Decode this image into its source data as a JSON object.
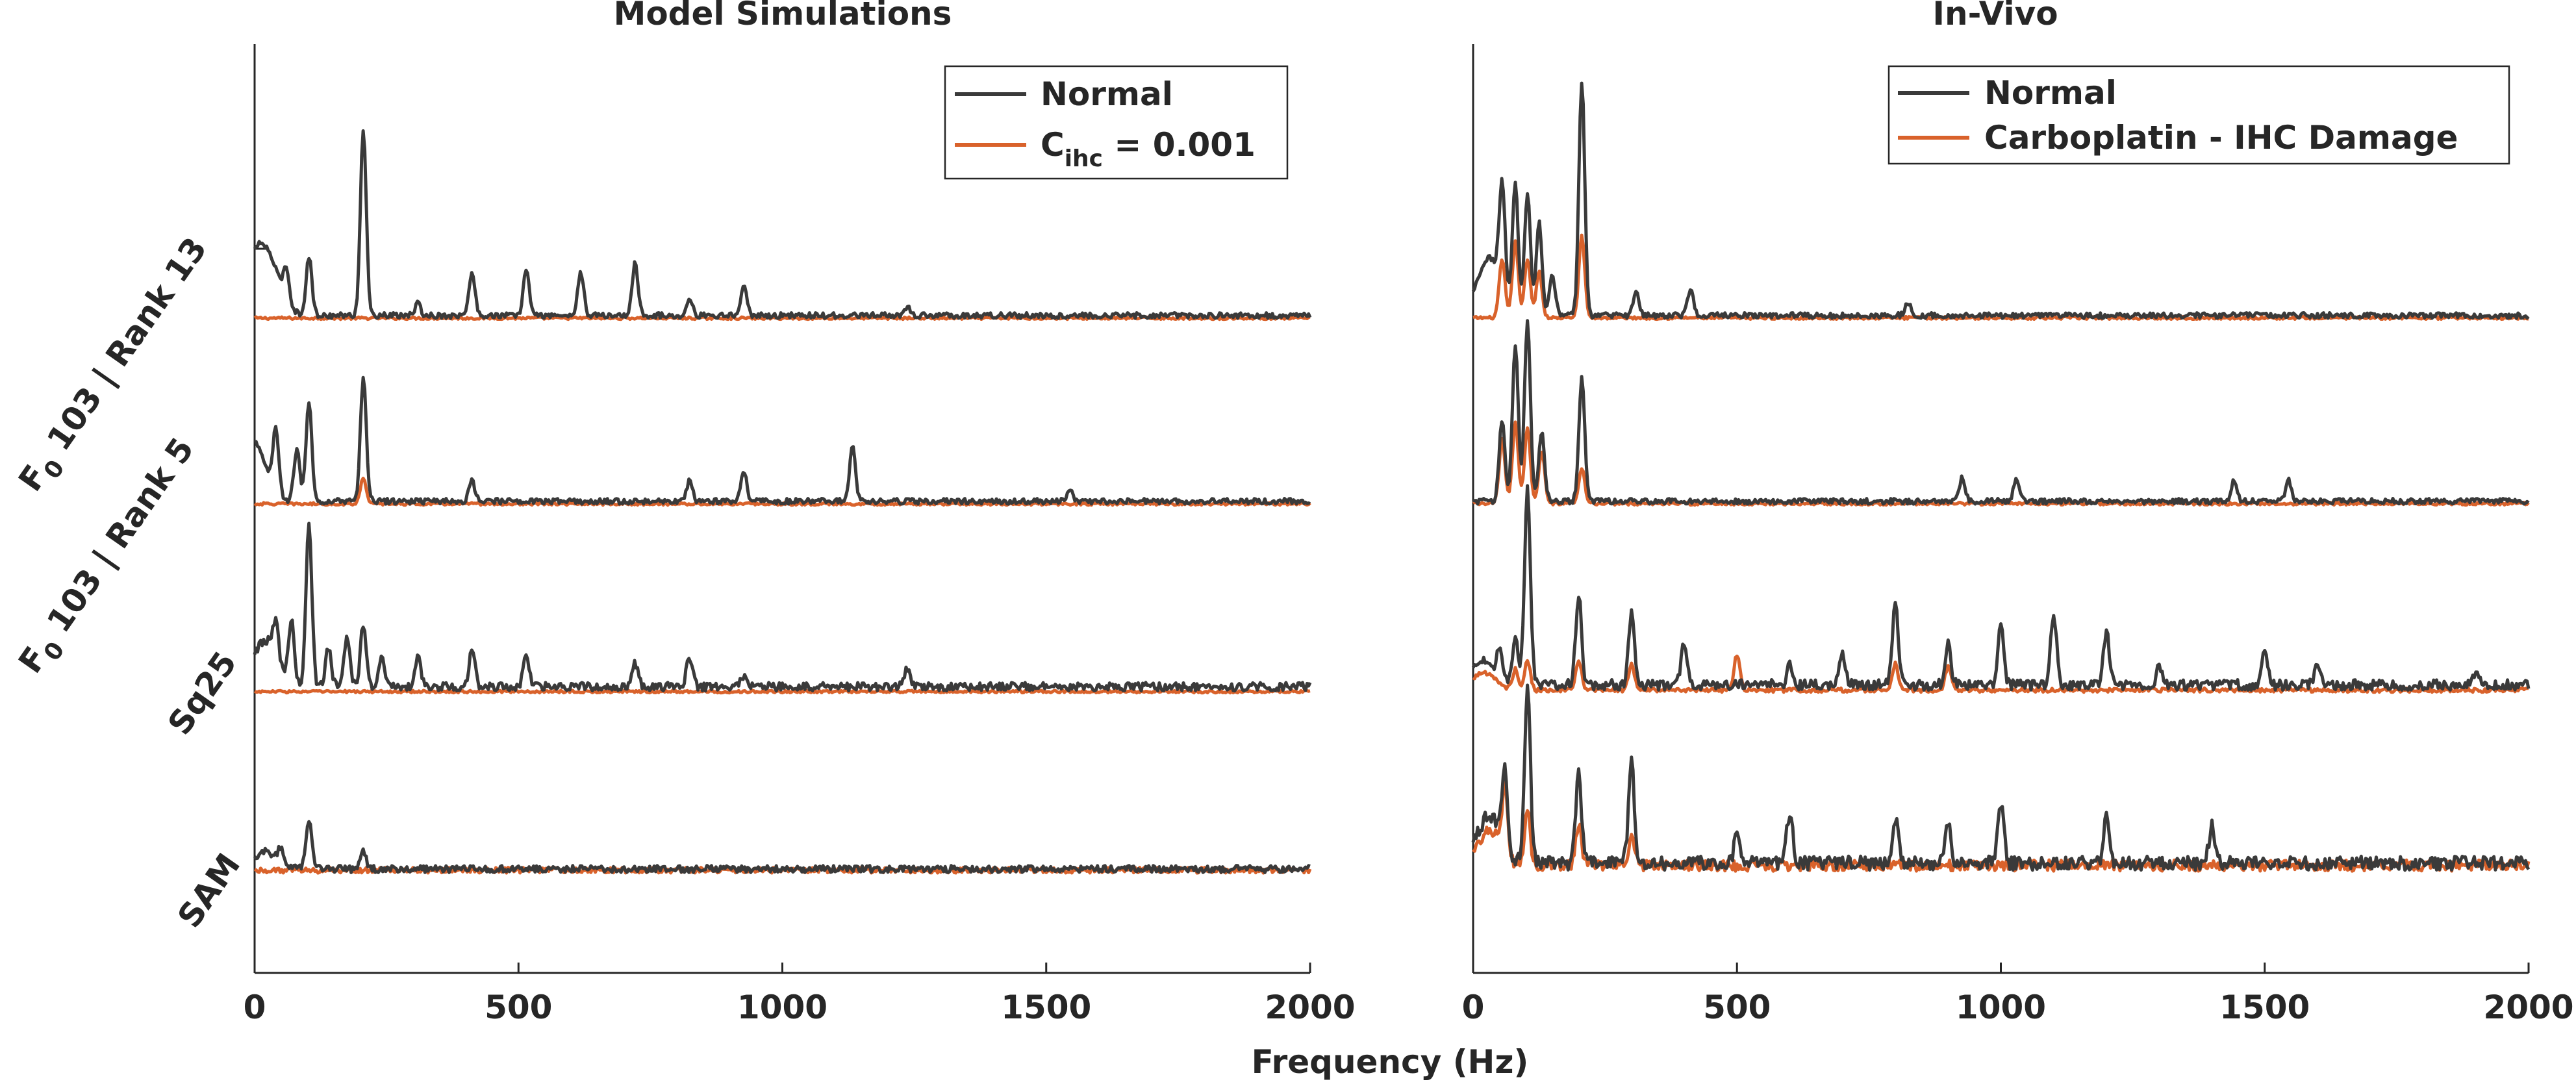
{
  "figure": {
    "xlabel": "Frequency (Hz)",
    "ylabels": [
      {
        "main": "F",
        "sub": "0",
        "rest": " 103 | Rank 13"
      },
      {
        "main": "F",
        "sub": "0",
        "rest": " 103 | Rank 5"
      },
      {
        "main": "Sq25",
        "sub": "",
        "rest": ""
      },
      {
        "main": "SAM",
        "sub": "",
        "rest": ""
      }
    ]
  },
  "colors": {
    "normal": "#3a3a3a",
    "damaged": "#d9622b"
  },
  "chart_data": [
    {
      "type": "line",
      "title": "Model Simulations",
      "xlabel": "Frequency (Hz)",
      "xlim": [
        0,
        2000
      ],
      "xticks": [
        "0",
        "500",
        "1000",
        "1500",
        "2000"
      ],
      "grid": false,
      "legend_position": "top-right",
      "legend": [
        {
          "text": "Normal",
          "sub": "",
          "suffix": "",
          "series": "normal"
        },
        {
          "text": "C",
          "sub": "ihc",
          "suffix": " = 0.001",
          "series": "damaged"
        }
      ],
      "rows": [
        {
          "label": "F0 103 | Rank 13",
          "normal": {
            "base": 0.8,
            "peaks": [
              [
                0,
                8.5
              ],
              [
                30,
                7.0
              ],
              [
                60,
                5.5
              ],
              [
                103,
                10.0
              ],
              [
                206,
                32.0
              ],
              [
                309,
                2.0
              ],
              [
                412,
                7.5
              ],
              [
                515,
                8.0
              ],
              [
                618,
                7.5
              ],
              [
                721,
                9.0
              ],
              [
                824,
                3.0
              ],
              [
                927,
                5.5
              ],
              [
                1236,
                1.5
              ]
            ]
          },
          "damaged": {
            "base": 0.35,
            "peaks": []
          }
        },
        {
          "label": "F0 103 | Rank 5",
          "normal": {
            "base": 0.8,
            "peaks": [
              [
                0,
                10.0
              ],
              [
                40,
                10.5
              ],
              [
                80,
                9.0
              ],
              [
                103,
                17.0
              ],
              [
                206,
                21.0
              ],
              [
                412,
                3.5
              ],
              [
                824,
                3.5
              ],
              [
                927,
                5.0
              ],
              [
                1133,
                9.5
              ],
              [
                1545,
                1.8
              ]
            ]
          },
          "damaged": {
            "base": 0.35,
            "peaks": [
              [
                206,
                4.5
              ]
            ]
          }
        },
        {
          "label": "Sq25",
          "normal": {
            "base": 1.2,
            "peaks": [
              [
                20,
                8.0
              ],
              [
                40,
                6.0
              ],
              [
                70,
                11.0
              ],
              [
                103,
                28.0
              ],
              [
                140,
                6.5
              ],
              [
                175,
                8.0
              ],
              [
                206,
                10.5
              ],
              [
                240,
                5.0
              ],
              [
                309,
                5.0
              ],
              [
                412,
                6.5
              ],
              [
                515,
                5.5
              ],
              [
                721,
                4.0
              ],
              [
                824,
                5.0
              ],
              [
                927,
                2.0
              ],
              [
                1236,
                3.0
              ]
            ]
          },
          "damaged": {
            "base": 0.35,
            "peaks": []
          }
        },
        {
          "label": "SAM",
          "normal": {
            "base": 1.0,
            "peaks": [
              [
                20,
                3.0
              ],
              [
                50,
                2.5
              ],
              [
                103,
                8.0
              ],
              [
                206,
                3.0
              ]
            ]
          },
          "damaged": {
            "base": 0.8,
            "peaks": []
          }
        }
      ]
    },
    {
      "type": "line",
      "title": "In-Vivo",
      "xlabel": "Frequency (Hz)",
      "xlim": [
        0,
        2000
      ],
      "xticks": [
        "0",
        "500",
        "1000",
        "1500",
        "2000"
      ],
      "grid": false,
      "legend_position": "top-right",
      "legend": [
        {
          "text": "Normal",
          "sub": "",
          "suffix": "",
          "series": "normal"
        },
        {
          "text": "Carboplatin - IHC Damage",
          "sub": "",
          "suffix": "",
          "series": "damaged"
        }
      ],
      "rows": [
        {
          "label": "F0 103 | Rank 13",
          "normal": {
            "base": 0.8,
            "peaks": [
              [
                30,
                10.0
              ],
              [
                55,
                18.0
              ],
              [
                80,
                22.0
              ],
              [
                103,
                21.0
              ],
              [
                125,
                16.0
              ],
              [
                150,
                7.0
              ],
              [
                206,
                40.0
              ],
              [
                309,
                4.0
              ],
              [
                412,
                4.5
              ],
              [
                824,
                2.0
              ]
            ]
          },
          "damaged": {
            "base": 0.4,
            "peaks": [
              [
                55,
                10.0
              ],
              [
                80,
                13.0
              ],
              [
                103,
                10.0
              ],
              [
                125,
                8.0
              ],
              [
                206,
                14.0
              ]
            ]
          }
        },
        {
          "label": "F0 103 | Rank 5",
          "normal": {
            "base": 0.8,
            "peaks": [
              [
                55,
                14.0
              ],
              [
                80,
                27.0
              ],
              [
                103,
                31.0
              ],
              [
                130,
                12.0
              ],
              [
                206,
                21.0
              ],
              [
                927,
                4.0
              ],
              [
                1030,
                4.0
              ],
              [
                1442,
                3.5
              ],
              [
                1545,
                3.5
              ]
            ]
          },
          "damaged": {
            "base": 0.4,
            "peaks": [
              [
                55,
                11.0
              ],
              [
                80,
                14.0
              ],
              [
                103,
                13.0
              ],
              [
                130,
                9.0
              ],
              [
                206,
                6.0
              ]
            ]
          }
        },
        {
          "label": "Sq25",
          "normal": {
            "base": 1.5,
            "peaks": [
              [
                20,
                4.0
              ],
              [
                50,
                4.5
              ],
              [
                80,
                8.0
              ],
              [
                103,
                34.0
              ],
              [
                200,
                15.5
              ],
              [
                300,
                12.0
              ],
              [
                400,
                7.5
              ],
              [
                600,
                3.5
              ],
              [
                700,
                5.0
              ],
              [
                800,
                14.0
              ],
              [
                900,
                7.0
              ],
              [
                1000,
                10.5
              ],
              [
                1100,
                12.5
              ],
              [
                1200,
                9.0
              ],
              [
                1300,
                3.0
              ],
              [
                1500,
                5.5
              ],
              [
                1600,
                3.5
              ],
              [
                1900,
                2.0
              ]
            ]
          },
          "damaged": {
            "base": 0.6,
            "peaks": [
              [
                20,
                3.0
              ],
              [
                80,
                3.5
              ],
              [
                103,
                5.0
              ],
              [
                200,
                5.0
              ],
              [
                300,
                4.5
              ],
              [
                500,
                6.0
              ],
              [
                800,
                4.5
              ],
              [
                900,
                4.0
              ]
            ]
          }
        },
        {
          "label": "SAM",
          "normal": {
            "base": 2.0,
            "peaks": [
              [
                30,
                8.0
              ],
              [
                60,
                13.0
              ],
              [
                103,
                30.0
              ],
              [
                200,
                15.0
              ],
              [
                300,
                17.0
              ],
              [
                500,
                4.5
              ],
              [
                600,
                9.0
              ],
              [
                800,
                7.5
              ],
              [
                900,
                6.5
              ],
              [
                1000,
                10.0
              ],
              [
                1200,
                7.5
              ],
              [
                1400,
                6.5
              ]
            ]
          },
          "damaged": {
            "base": 1.6,
            "peaks": [
              [
                30,
                6.0
              ],
              [
                60,
                11.0
              ],
              [
                103,
                9.0
              ],
              [
                200,
                7.0
              ],
              [
                300,
                5.0
              ]
            ]
          }
        }
      ]
    }
  ]
}
